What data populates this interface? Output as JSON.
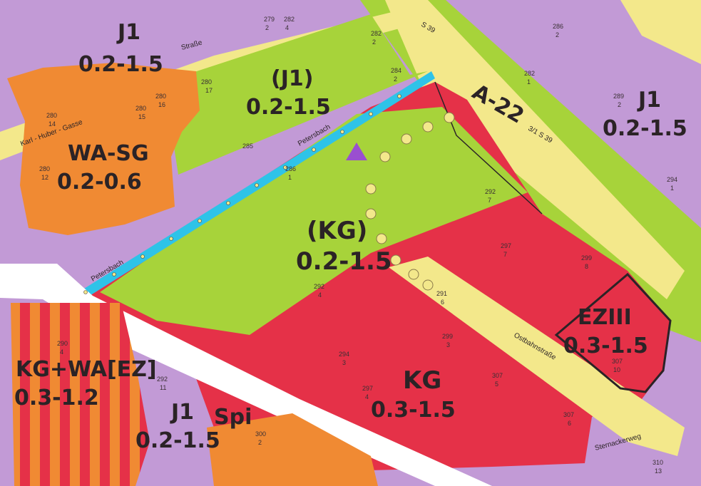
{
  "colors": {
    "lavender_residential": "#c29ad6",
    "orange_residential": "#f08a33",
    "green_allotment": "#a7d33a",
    "red_commercial": "#e53148",
    "yellow_street": "#f3e88b",
    "blue_stream": "#2ec3e8",
    "stripe_red": "#e53148",
    "stripe_orange": "#f08a33"
  },
  "zones": [
    {
      "id": "j1_top",
      "code": "J1",
      "density": "0.2-1.5"
    },
    {
      "id": "j1_green",
      "code": "(J1)",
      "density": "0.2-1.5"
    },
    {
      "id": "wa_sg",
      "code": "WA-SG",
      "density": "0.2-0.6"
    },
    {
      "id": "kg_green",
      "code": "(KG)",
      "density": "0.2-1.5"
    },
    {
      "id": "j1_right",
      "code": "J1",
      "density": "0.2-1.5"
    },
    {
      "id": "eziii",
      "code": "EZIII",
      "density": "0.3-1.5"
    },
    {
      "id": "kg_red",
      "code": "KG",
      "density": "0.3-1.5"
    },
    {
      "id": "kg_wa_ez",
      "code": "KG+WA[EZ]",
      "density": "0.3-1.2"
    },
    {
      "id": "j1_bottom",
      "code": "J1",
      "density": "0.2-1.5"
    }
  ],
  "road_code": "A-22",
  "spi_label": "Spi",
  "streets": {
    "karl_huber": "Karl - Huber - Gasse",
    "petersbach_1": "Petersbach",
    "petersbach_2": "Petersbach",
    "ostbahn": "Ostbahnstraße",
    "sternacker": "Sternackerweg",
    "strasse": "Straße",
    "s39_top": "S 39",
    "s39_mid": "3/1 S 39"
  },
  "parcels": [
    {
      "num": "279",
      "den": "2"
    },
    {
      "num": "282",
      "den": "4"
    },
    {
      "num": "282",
      "den": "2"
    },
    {
      "num": "284",
      "den": "2"
    },
    {
      "num": "280",
      "den": "17"
    },
    {
      "num": "280",
      "den": "16"
    },
    {
      "num": "280",
      "den": "15"
    },
    {
      "num": "280",
      "den": "14"
    },
    {
      "num": "280",
      "den": "12"
    },
    {
      "num": "285",
      "den": ""
    },
    {
      "num": "286",
      "den": "1"
    },
    {
      "num": "292",
      "den": "7"
    },
    {
      "num": "297",
      "den": "7"
    },
    {
      "num": "299",
      "den": "8"
    },
    {
      "num": "292",
      "den": "4"
    },
    {
      "num": "294",
      "den": "3"
    },
    {
      "num": "299",
      "den": "3"
    },
    {
      "num": "307",
      "den": "5"
    },
    {
      "num": "307",
      "den": "10"
    },
    {
      "num": "307",
      "den": "6"
    },
    {
      "num": "289",
      "den": "2"
    },
    {
      "num": "294",
      "den": "1"
    },
    {
      "num": "286",
      "den": "2"
    },
    {
      "num": "290",
      "den": "4"
    },
    {
      "num": "292",
      "den": "11"
    },
    {
      "num": "310",
      "den": "13"
    },
    {
      "num": "300",
      "den": "2"
    },
    {
      "num": "291",
      "den": "6"
    },
    {
      "num": "297",
      "den": "4"
    },
    {
      "num": "282",
      "den": "1"
    }
  ]
}
